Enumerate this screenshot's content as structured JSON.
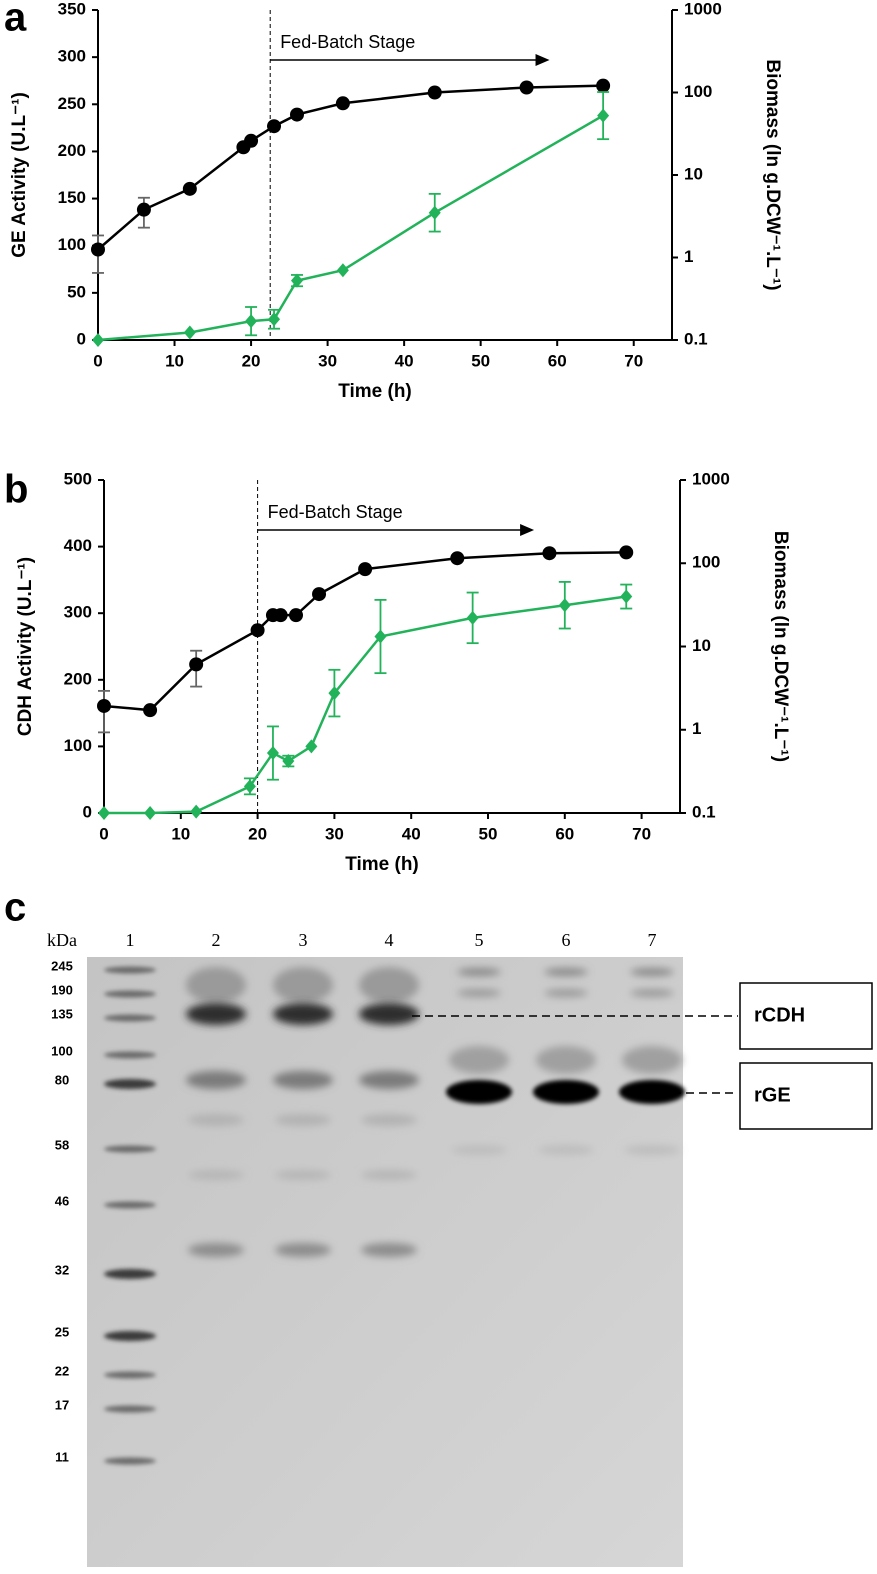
{
  "chart_data": [
    {
      "type": "line",
      "panel_label": "a",
      "x_label": "Time (h)",
      "y_label": "GE Activity (U.L⁻¹)",
      "y2_label": "Biomass (ln g.DCW⁻¹.L⁻¹)",
      "xlim": [
        0,
        75
      ],
      "xticks": [
        0,
        10,
        20,
        30,
        40,
        50,
        60,
        70
      ],
      "ylim": [
        0,
        350
      ],
      "yticks": [
        0,
        50,
        100,
        150,
        200,
        250,
        300,
        350
      ],
      "y2lim": [
        0.1,
        1000
      ],
      "y2ticks": [
        0.1,
        1,
        10,
        100,
        1000
      ],
      "y2_log": true,
      "series": [
        {
          "axis": "y2",
          "marker": "circle",
          "color": "#000000",
          "error_color": "#666666",
          "x": [
            0,
            6,
            12,
            19,
            20,
            23,
            26,
            32,
            44,
            56,
            66
          ],
          "values": [
            1.25,
            3.8,
            6.8,
            21.7,
            26,
            39,
            54,
            74,
            100,
            115,
            121
          ],
          "errors": [
            0.6,
            1.5,
            null,
            null,
            null,
            null,
            null,
            null,
            null,
            null,
            null
          ]
        },
        {
          "axis": "y",
          "marker": "diamond",
          "color": "#22b35a",
          "error_color": "#22b35a",
          "x": [
            0,
            12,
            20,
            23,
            26,
            32,
            44,
            66
          ],
          "values": [
            0,
            8,
            20,
            22,
            63,
            74,
            135,
            238
          ],
          "errors": [
            null,
            null,
            15,
            10,
            6,
            null,
            20,
            25
          ]
        }
      ],
      "annotation": {
        "text": "Fed-Batch Stage",
        "x": 22.5,
        "arrow_to": 59
      }
    },
    {
      "type": "line",
      "panel_label": "b",
      "x_label": "Time (h)",
      "y_label": "CDH Activity (U.L⁻¹)",
      "y2_label": "Biomass (ln g.DCW⁻¹.L⁻¹)",
      "xlim": [
        0,
        75
      ],
      "xticks": [
        0,
        10,
        20,
        30,
        40,
        50,
        60,
        70
      ],
      "ylim": [
        0,
        500
      ],
      "yticks": [
        0,
        100,
        200,
        300,
        400,
        500
      ],
      "y2lim": [
        0.1,
        1000
      ],
      "y2ticks": [
        0.1,
        1,
        10,
        100,
        1000
      ],
      "y2_log": true,
      "series": [
        {
          "axis": "y2",
          "marker": "circle",
          "color": "#000000",
          "error_color": "#666666",
          "x": [
            0,
            6,
            12,
            20,
            22,
            23,
            25,
            28,
            34,
            46,
            58,
            68
          ],
          "values": [
            1.93,
            1.72,
            6.1,
            15.7,
            23.8,
            23.8,
            23.8,
            42.6,
            85,
            115,
            132,
            135
          ],
          "errors": [
            1.0,
            null,
            2.8,
            null,
            null,
            null,
            null,
            null,
            null,
            null,
            null,
            null
          ]
        },
        {
          "axis": "y",
          "marker": "diamond",
          "color": "#22b35a",
          "error_color": "#22b35a",
          "x": [
            0,
            6,
            12,
            19,
            22,
            24,
            27,
            30,
            36,
            48,
            60,
            68
          ],
          "values": [
            0,
            0,
            2,
            40,
            90,
            78,
            100,
            180,
            265,
            293,
            312,
            325
          ],
          "errors": [
            null,
            null,
            null,
            12,
            40,
            8,
            null,
            35,
            55,
            38,
            35,
            18
          ]
        }
      ],
      "annotation": {
        "text": "Fed-Batch Stage",
        "x": 20,
        "arrow_to": 56
      }
    }
  ],
  "gel": {
    "panel_label": "c",
    "unit_label": "kDa",
    "lanes": [
      "1",
      "2",
      "3",
      "4",
      "5",
      "6",
      "7"
    ],
    "markers": [
      245,
      190,
      135,
      100,
      80,
      58,
      46,
      32,
      25,
      22,
      17,
      11
    ],
    "annotations": [
      "rCDH",
      "rGE"
    ]
  }
}
